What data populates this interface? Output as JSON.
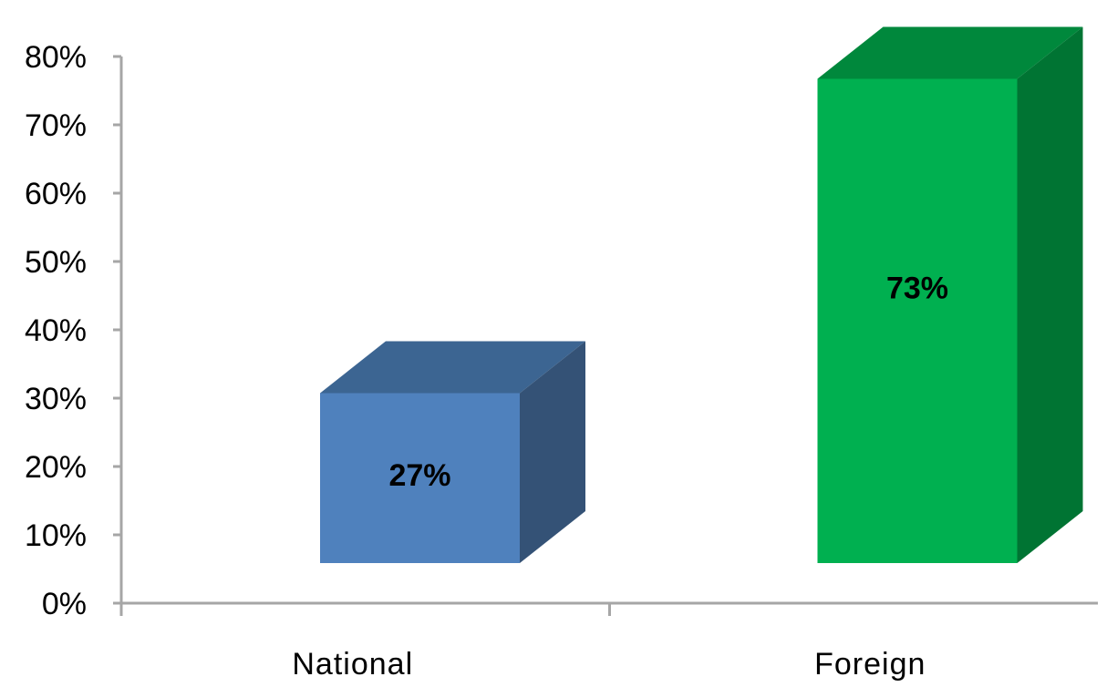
{
  "chart_data": {
    "type": "bar",
    "style": "3d",
    "categories": [
      "National",
      "Foreign"
    ],
    "values": [
      27,
      73
    ],
    "data_labels": [
      "27%",
      "73%"
    ],
    "ylim": [
      0,
      80
    ],
    "yticks": [
      {
        "value": 0,
        "label": "0%"
      },
      {
        "value": 10,
        "label": "10%"
      },
      {
        "value": 20,
        "label": "20%"
      },
      {
        "value": 30,
        "label": "30%"
      },
      {
        "value": 40,
        "label": "40%"
      },
      {
        "value": 50,
        "label": "50%"
      },
      {
        "value": 60,
        "label": "60%"
      },
      {
        "value": 70,
        "label": "70%"
      },
      {
        "value": 80,
        "label": "80%"
      }
    ],
    "grid": false,
    "legend": "none",
    "colors": {
      "National": {
        "front": "#4f81bd",
        "top": "#3c6592",
        "side": "#345276"
      },
      "Foreign": {
        "front": "#00b050",
        "top": "#00883c",
        "side": "#007433"
      },
      "axis": "#a6a6a6"
    }
  }
}
